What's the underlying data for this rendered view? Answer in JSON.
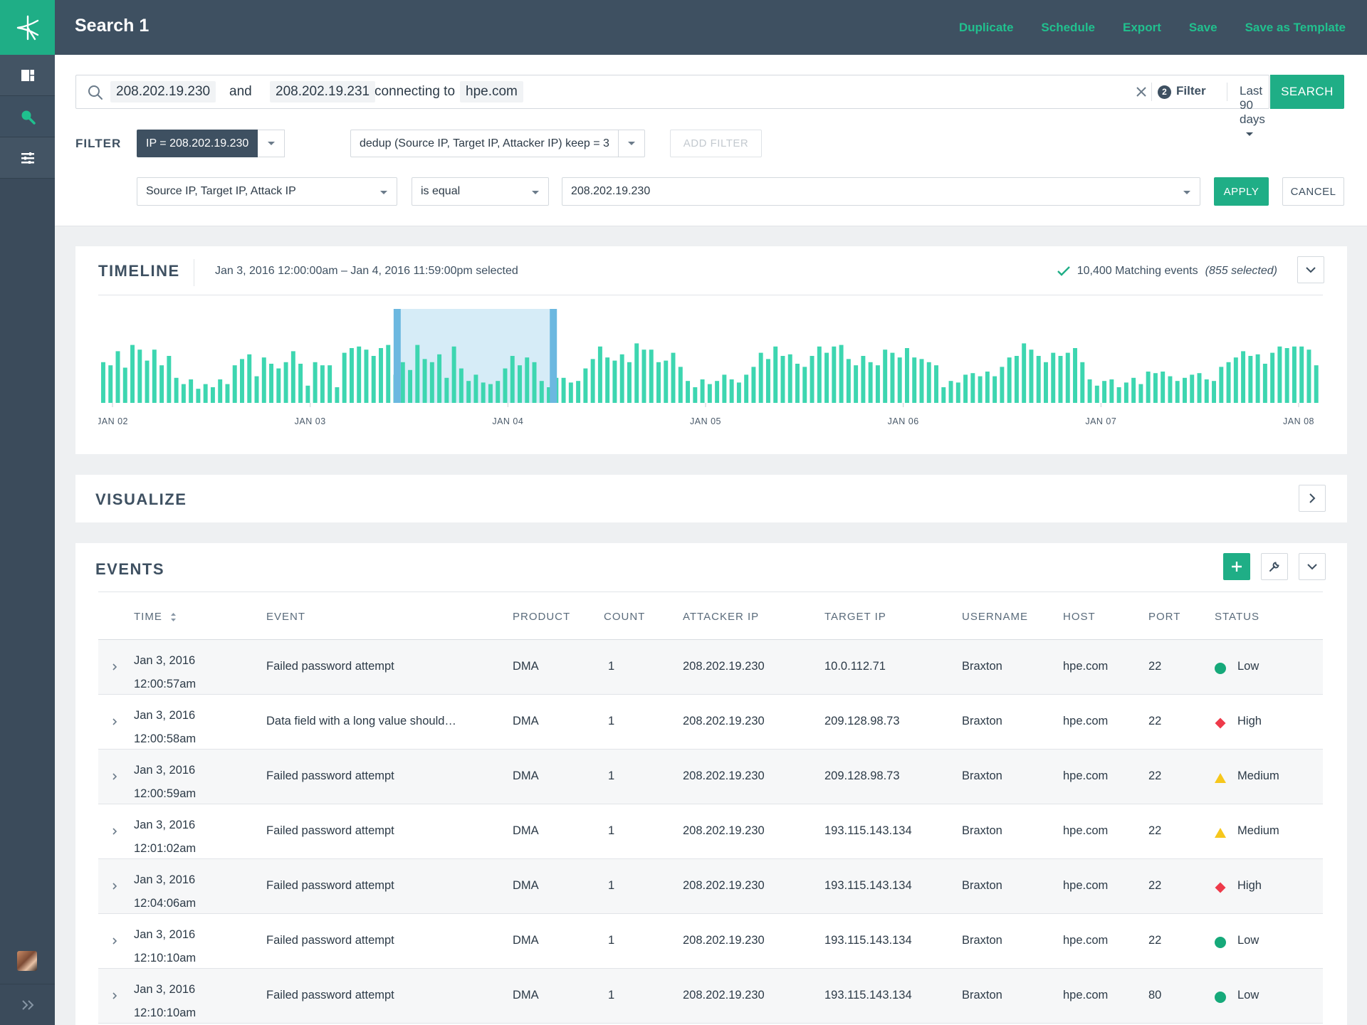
{
  "app": {
    "title": "Search 1",
    "actions": [
      "Duplicate",
      "Schedule",
      "Export",
      "Save",
      "Save as Template"
    ]
  },
  "icons": {
    "logo": "app-logo-icon",
    "nav": [
      "dashboard-icon",
      "search-icon",
      "settings-sliders-icon"
    ],
    "expand": "double-chevron-right-icon"
  },
  "search": {
    "terms": [
      "208.202.19.230",
      "and",
      "208.202.19.231",
      "connecting to",
      "hpe.com"
    ],
    "filter_count": "2",
    "filter_label": "Filter",
    "range": "Last 90 days",
    "button": "SEARCH"
  },
  "filter": {
    "label": "FILTER",
    "active": "IP = 208.202.19.230",
    "dedup": "dedup (Source IP, Target IP, Attacker IP) keep = 3",
    "add": "ADD FILTER",
    "field": "Source IP, Target IP, Attack IP",
    "operator": "is equal",
    "value": "208.202.19.230",
    "apply": "APPLY",
    "cancel": "CANCEL"
  },
  "timeline": {
    "title": "TIMELINE",
    "range": "Jan 3, 2016 12:00:00am – Jan 4, 2016 11:59:00pm selected",
    "matching": "10,400 Matching events",
    "selected": "(855 selected)",
    "chart_data": {
      "type": "bar",
      "x_labels": [
        "JAN 02",
        "JAN 03",
        "JAN 04",
        "JAN 05",
        "JAN 06",
        "JAN 07",
        "JAN 08"
      ],
      "selection": {
        "start": "JAN 03",
        "end": "JAN 04"
      },
      "ylim": [
        0,
        100
      ],
      "values": [
        52,
        48,
        66,
        45,
        74,
        68,
        54,
        68,
        48,
        60,
        32,
        24,
        30,
        18,
        24,
        20,
        30,
        24,
        48,
        56,
        62,
        34,
        58,
        50,
        44,
        52,
        66,
        50,
        22,
        52,
        48,
        48,
        20,
        64,
        70,
        72,
        68,
        60,
        70,
        74,
        36,
        52,
        42,
        74,
        56,
        52,
        62,
        32,
        72,
        44,
        28,
        36,
        26,
        24,
        28,
        44,
        60,
        48,
        58,
        52,
        28,
        20,
        32,
        32,
        26,
        28,
        44,
        56,
        72,
        58,
        54,
        62,
        52,
        76,
        68,
        68,
        52,
        54,
        64,
        46,
        28,
        20,
        30,
        24,
        28,
        36,
        30,
        26,
        36,
        46,
        64,
        56,
        72,
        60,
        62,
        50,
        46,
        60,
        72,
        64,
        72,
        74,
        56,
        48,
        60,
        52,
        48,
        68,
        64,
        58,
        70,
        58,
        56,
        52,
        48,
        20,
        28,
        26,
        36,
        38,
        34,
        40,
        34,
        46,
        58,
        60,
        76,
        68,
        60,
        52,
        64,
        60,
        64,
        70,
        52,
        30,
        22,
        28,
        30,
        20,
        26,
        32,
        24,
        40,
        38,
        40,
        34,
        28,
        32,
        36,
        38,
        30,
        28,
        46,
        52,
        58,
        66,
        60,
        62,
        50,
        64,
        72,
        70,
        72,
        72,
        68,
        48
      ]
    }
  },
  "visualize": {
    "title": "VISUALIZE"
  },
  "events": {
    "title": "EVENTS",
    "columns": [
      "TIME",
      "EVENT",
      "PRODUCT",
      "COUNT",
      "ATTACKER IP",
      "TARGET IP",
      "USERNAME",
      "HOST",
      "PORT",
      "STATUS"
    ],
    "rows": [
      {
        "date": "Jan 3, 2016",
        "time": "12:00:57am",
        "event": "Failed password attempt",
        "product": "DMA",
        "count": "1",
        "attacker": "208.202.19.230",
        "target": "10.0.112.71",
        "user": "Braxton",
        "host": "hpe.com",
        "port": "22",
        "status": "Low"
      },
      {
        "date": "Jan 3, 2016",
        "time": "12:00:58am",
        "event": "Data field with a long value should…",
        "product": "DMA",
        "count": "1",
        "attacker": "208.202.19.230",
        "target": "209.128.98.73",
        "user": "Braxton",
        "host": "hpe.com",
        "port": "22",
        "status": "High"
      },
      {
        "date": "Jan 3, 2016",
        "time": "12:00:59am",
        "event": "Failed password attempt",
        "product": "DMA",
        "count": "1",
        "attacker": "208.202.19.230",
        "target": "209.128.98.73",
        "user": "Braxton",
        "host": "hpe.com",
        "port": "22",
        "status": "Medium"
      },
      {
        "date": "Jan 3, 2016",
        "time": "12:01:02am",
        "event": "Failed password attempt",
        "product": "DMA",
        "count": "1",
        "attacker": "208.202.19.230",
        "target": "193.115.143.134",
        "user": "Braxton",
        "host": "hpe.com",
        "port": "22",
        "status": "Medium"
      },
      {
        "date": "Jan 3, 2016",
        "time": "12:04:06am",
        "event": "Failed password attempt",
        "product": "DMA",
        "count": "1",
        "attacker": "208.202.19.230",
        "target": "193.115.143.134",
        "user": "Braxton",
        "host": "hpe.com",
        "port": "22",
        "status": "High"
      },
      {
        "date": "Jan 3, 2016",
        "time": "12:10:10am",
        "event": "Failed password attempt",
        "product": "DMA",
        "count": "1",
        "attacker": "208.202.19.230",
        "target": "193.115.143.134",
        "user": "Braxton",
        "host": "hpe.com",
        "port": "22",
        "status": "Low"
      },
      {
        "date": "Jan 3, 2016",
        "time": "12:10:10am",
        "event": "Failed password attempt",
        "product": "DMA",
        "count": "1",
        "attacker": "208.202.19.230",
        "target": "193.115.143.134",
        "user": "Braxton",
        "host": "hpe.com",
        "port": "80",
        "status": "Low"
      }
    ]
  },
  "colors": {
    "accent": "#1fae86",
    "bar": "#3dd6b0",
    "selection": "#d6ecf7",
    "selection_edge": "#6cb8e0",
    "low": "#16a97a",
    "high": "#ee3a4a",
    "medium": "#f6c71c"
  }
}
